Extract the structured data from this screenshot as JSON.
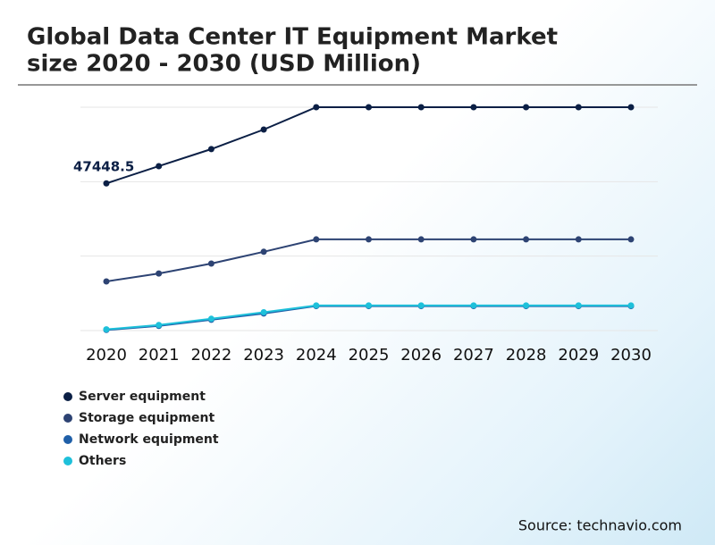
{
  "chart_data": {
    "type": "line",
    "title": [
      "Global Data Center IT Equipment Market",
      "size 2020 - 2030 (USD Million)"
    ],
    "source": "Source: technavio.com",
    "categories": [
      "2020",
      "2021",
      "2022",
      "2023",
      "2024",
      "2025",
      "2026",
      "2027",
      "2028",
      "2029",
      "2030"
    ],
    "series": [
      {
        "name": "Server equipment",
        "color": "#0b1f45",
        "values": [
          47448.5,
          53000,
          58500,
          64800,
          72000,
          72000,
          72000,
          72000,
          72000,
          72000,
          72000
        ]
      },
      {
        "name": "Storage equipment",
        "color": "#2d4373",
        "values": [
          15850,
          18400,
          21600,
          25400,
          29400,
          29400,
          29400,
          29400,
          29400,
          29400,
          29400
        ]
      },
      {
        "name": "Network equipment",
        "color": "#1f5fa8",
        "values": [
          200,
          1500,
          3500,
          5500,
          7900,
          7900,
          7900,
          7900,
          7900,
          7900,
          7900
        ]
      },
      {
        "name": "Others",
        "color": "#1ec0da",
        "values": [
          400,
          1800,
          3800,
          5900,
          8100,
          8100,
          8100,
          8100,
          8100,
          8100,
          8100
        ]
      }
    ],
    "ylim": [
      0,
      72000
    ],
    "yticks": [
      0,
      24000,
      48000,
      72000
    ],
    "grid": true
  }
}
